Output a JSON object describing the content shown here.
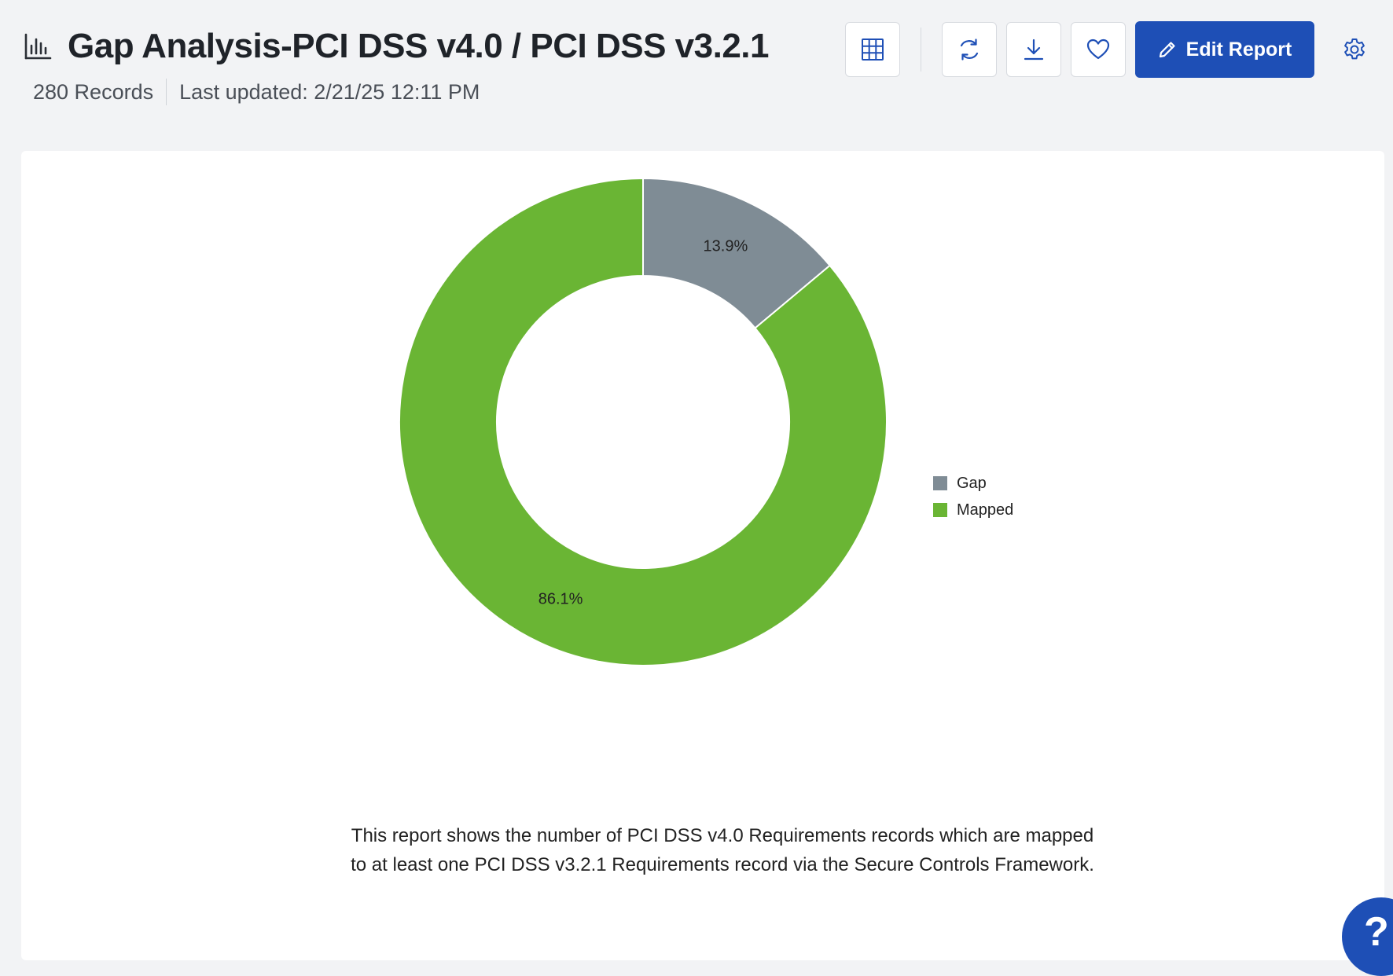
{
  "header": {
    "title": "Gap Analysis-PCI DSS v4.0 / PCI DSS v3.2.1",
    "records": "280 Records",
    "last_updated": "Last updated: 2/21/25 12:11 PM"
  },
  "toolbar": {
    "edit_label": "Edit Report",
    "icons": [
      "table-grid-icon",
      "refresh-icon",
      "download-icon",
      "heart-icon",
      "pencil-icon",
      "gear-icon"
    ],
    "accent_color": "#1e4fb6"
  },
  "chart_data": {
    "type": "pie",
    "variant": "donut",
    "title": "",
    "categories": [
      "Gap",
      "Mapped"
    ],
    "values": [
      13.9,
      86.1
    ],
    "labels": [
      "13.9%",
      "86.1%"
    ],
    "colors": [
      "#7f8c95",
      "#6ab534"
    ],
    "legend_position": "right"
  },
  "description": "This report shows the number of PCI DSS v4.0 Requirements records which are mapped to at least one PCI DSS v3.2.1 Requirements record via the Secure Controls Framework.",
  "help": {
    "label": "?"
  }
}
